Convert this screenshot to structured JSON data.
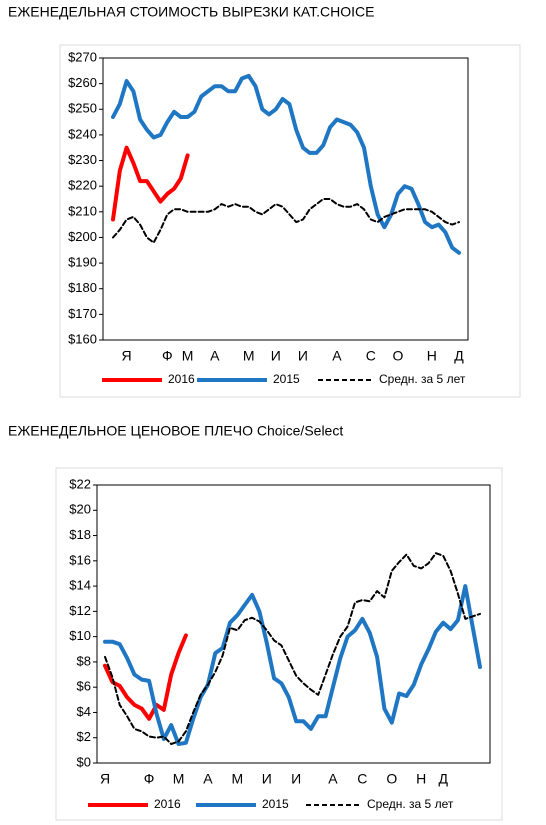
{
  "chart_data": [
    {
      "type": "line",
      "title": "ЕЖЕНЕДЕЛЬНАЯ СТОИМОСТЬ ВЫРЕЗКИ КАТ.CHOICE",
      "categories": [
        null,
        null,
        "Я",
        null,
        null,
        null,
        null,
        null,
        "Ф",
        null,
        null,
        "М",
        null,
        null,
        null,
        "А",
        null,
        null,
        null,
        null,
        "М",
        null,
        null,
        null,
        "И",
        null,
        null,
        null,
        "И",
        null,
        null,
        null,
        null,
        "А",
        null,
        null,
        null,
        null,
        "С",
        null,
        null,
        null,
        "О",
        null,
        null,
        null,
        null,
        "Н",
        null,
        null,
        null,
        "Д"
      ],
      "ylim": [
        160,
        270
      ],
      "yticks": [
        {
          "value": 160,
          "label": "$160"
        },
        {
          "value": 170,
          "label": "$170"
        },
        {
          "value": 180,
          "label": "$180"
        },
        {
          "value": 190,
          "label": "$190"
        },
        {
          "value": 200,
          "label": "$200"
        },
        {
          "value": 210,
          "label": "$210"
        },
        {
          "value": 220,
          "label": "$220"
        },
        {
          "value": 230,
          "label": "$230"
        },
        {
          "value": 240,
          "label": "$240"
        },
        {
          "value": 250,
          "label": "$250"
        },
        {
          "value": 260,
          "label": "$260"
        },
        {
          "value": 270,
          "label": "$270"
        }
      ],
      "grid": false,
      "series": [
        {
          "name": "2016",
          "color": "#ff0000",
          "style": "solid",
          "values": [
            207,
            226,
            235,
            229,
            222,
            222,
            218,
            214,
            217,
            219,
            223,
            232,
            null,
            null,
            null,
            null,
            null,
            null,
            null,
            null,
            null,
            null,
            null,
            null,
            null,
            null,
            null,
            null,
            null,
            null,
            null,
            null,
            null,
            null,
            null,
            null,
            null,
            null,
            null,
            null,
            null,
            null,
            null,
            null,
            null,
            null,
            null,
            null,
            null,
            null,
            null,
            null
          ]
        },
        {
          "name": "2015",
          "color": "#1f77c4",
          "style": "solid",
          "values": [
            247,
            252,
            261,
            257,
            246,
            242,
            239,
            240,
            245,
            249,
            247,
            247,
            249,
            255,
            257,
            259,
            259,
            257,
            257,
            262,
            263,
            259,
            250,
            248,
            250,
            254,
            252,
            242,
            235,
            233,
            233,
            236,
            243,
            246,
            245,
            244,
            241,
            235,
            220,
            209,
            204,
            209,
            217,
            220,
            219,
            213,
            206,
            204,
            205,
            202,
            196,
            194
          ]
        },
        {
          "name": "Средн. за 5 лет",
          "color": "#000000",
          "style": "dashed",
          "values": [
            200,
            203,
            207,
            208,
            205,
            200,
            198,
            203,
            209,
            211,
            211,
            210,
            210,
            210,
            210,
            211,
            213,
            212,
            213,
            212,
            212,
            210,
            209,
            211,
            213,
            212,
            209,
            206,
            207,
            211,
            213,
            215,
            215,
            213,
            212,
            212,
            213,
            211,
            207,
            206,
            208,
            209,
            210,
            211,
            211,
            211,
            211,
            210,
            208,
            206,
            205,
            206
          ]
        }
      ]
    },
    {
      "type": "line",
      "title": "ЕЖЕНЕДЕЛЬНОЕ ЦЕНОВОЕ ПЛЕЧО Choice/Select",
      "categories": [
        "Я",
        null,
        null,
        null,
        null,
        null,
        "Ф",
        null,
        null,
        null,
        "М",
        null,
        null,
        null,
        "А",
        null,
        null,
        null,
        "М",
        null,
        null,
        null,
        "И",
        null,
        null,
        null,
        "И",
        null,
        null,
        null,
        null,
        "А",
        null,
        null,
        null,
        "С",
        null,
        null,
        null,
        "О",
        null,
        null,
        null,
        "Н",
        null,
        null,
        "Д",
        null,
        null,
        null,
        null,
        null
      ],
      "ylim": [
        0,
        22
      ],
      "yticks": [
        {
          "value": 0,
          "label": "$0"
        },
        {
          "value": 2,
          "label": "$2"
        },
        {
          "value": 4,
          "label": "$4"
        },
        {
          "value": 6,
          "label": "$6"
        },
        {
          "value": 8,
          "label": "$8"
        },
        {
          "value": 10,
          "label": "$10"
        },
        {
          "value": 12,
          "label": "$12"
        },
        {
          "value": 14,
          "label": "$14"
        },
        {
          "value": 16,
          "label": "$16"
        },
        {
          "value": 18,
          "label": "$18"
        },
        {
          "value": 20,
          "label": "$20"
        },
        {
          "value": 22,
          "label": "$22"
        }
      ],
      "grid": false,
      "series": [
        {
          "name": "2016",
          "color": "#ff0000",
          "style": "solid",
          "values": [
            7.7,
            6.4,
            6.1,
            5.2,
            4.6,
            4.3,
            3.5,
            4.6,
            4.2,
            7.0,
            8.7,
            10.1,
            null,
            null,
            null,
            null,
            null,
            null,
            null,
            null,
            null,
            null,
            null,
            null,
            null,
            null,
            null,
            null,
            null,
            null,
            null,
            null,
            null,
            null,
            null,
            null,
            null,
            null,
            null,
            null,
            null,
            null,
            null,
            null,
            null,
            null,
            null,
            null,
            null,
            null,
            null,
            null
          ]
        },
        {
          "name": "2015",
          "color": "#1f77c4",
          "style": "solid",
          "values": [
            9.6,
            9.6,
            9.4,
            8.3,
            7.0,
            6.6,
            6.5,
            3.9,
            1.9,
            3.0,
            1.5,
            1.6,
            3.5,
            5.2,
            6.2,
            8.7,
            9.1,
            11.1,
            11.7,
            12.5,
            13.3,
            12.0,
            9.5,
            6.7,
            6.3,
            5.2,
            3.3,
            3.3,
            2.7,
            3.7,
            3.7,
            6.0,
            8.3,
            10.0,
            10.5,
            11.4,
            10.3,
            8.4,
            4.3,
            3.2,
            5.5,
            5.3,
            6.2,
            7.8,
            9.0,
            10.4,
            11.1,
            10.6,
            11.3,
            14.0,
            10.8,
            7.6
          ]
        },
        {
          "name": "Средн. за 5 лет",
          "color": "#000000",
          "style": "dashed",
          "values": [
            8.4,
            6.8,
            4.6,
            3.7,
            2.7,
            2.5,
            2.1,
            2.0,
            2.1,
            1.5,
            1.7,
            2.5,
            4.0,
            5.4,
            6.2,
            7.2,
            8.5,
            10.7,
            10.5,
            11.3,
            11.5,
            11.2,
            10.5,
            9.7,
            9.3,
            8.1,
            6.9,
            6.3,
            5.8,
            5.4,
            7.0,
            8.6,
            10.0,
            10.8,
            12.7,
            12.9,
            12.8,
            13.6,
            13.1,
            15.2,
            15.9,
            16.5,
            15.6,
            15.4,
            15.8,
            16.6,
            16.4,
            15.2,
            13.4,
            11.4,
            11.6,
            11.8
          ]
        }
      ]
    }
  ]
}
